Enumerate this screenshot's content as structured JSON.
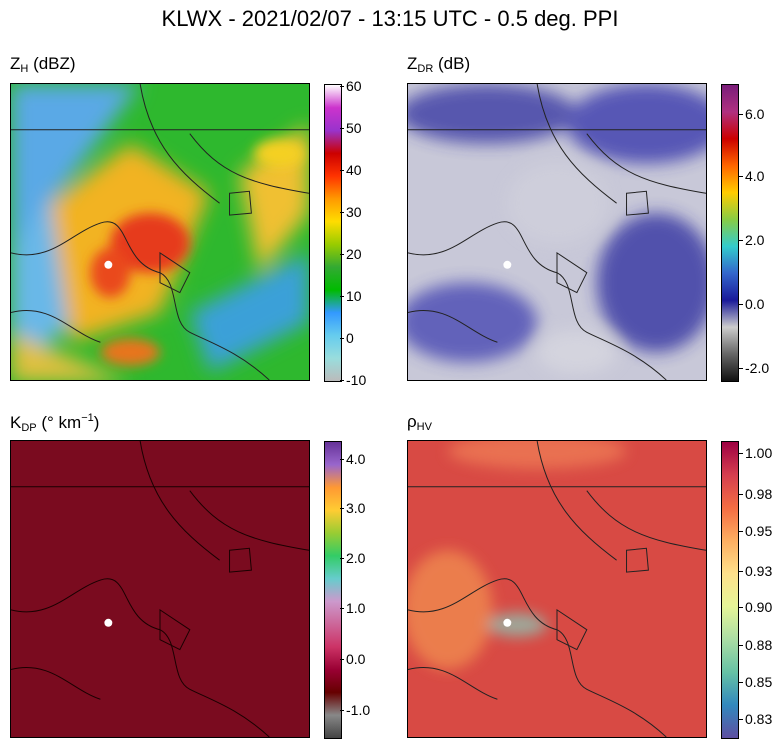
{
  "title": "KLWX - 2021/02/07 - 13:15 UTC - 0.5 deg. PPI",
  "panels": [
    {
      "id": "zh",
      "label_main": "Z",
      "label_sub": "H",
      "label_rest": " (dBZ)",
      "ticks": [
        "60",
        "50",
        "40",
        "30",
        "20",
        "10",
        "0",
        "-10"
      ],
      "colorbar": [
        "#ffffff",
        "#cc33cc",
        "#9933cc",
        "#cc0000",
        "#ff3300",
        "#ff9900",
        "#ffdd00",
        "#99cc00",
        "#33aa33",
        "#00bb00",
        "#3399ff",
        "#66ccee",
        "#99dddd",
        "#bbbbbb"
      ]
    },
    {
      "id": "zdr",
      "label_main": "Z",
      "label_sub": "DR",
      "label_rest": " (dB)",
      "ticks": [
        "6.0",
        "4.0",
        "2.0",
        "0.0",
        "-2.0"
      ],
      "colorbar": [
        "#7a1d7a",
        "#b03080",
        "#cc0000",
        "#ff6600",
        "#ffcc00",
        "#88cc44",
        "#33cccc",
        "#3366cc",
        "#1a1a99",
        "#cccccc",
        "#666666",
        "#111111"
      ]
    },
    {
      "id": "kdp",
      "label_main": "K",
      "label_sub": "DP",
      "label_rest": " (° km",
      "label_sup": "−1",
      "label_end": ")",
      "ticks": [
        "4.0",
        "3.0",
        "2.0",
        "1.0",
        "0.0",
        "-1.0"
      ],
      "colorbar": [
        "#663399",
        "#9966cc",
        "#ff9933",
        "#ffcc33",
        "#99cc33",
        "#33cc66",
        "#66cccc",
        "#cc99cc",
        "#cc6699",
        "#cc3366",
        "#990033",
        "#660000",
        "#888888",
        "#444444"
      ]
    },
    {
      "id": "rhohv",
      "label_main": "ρ",
      "label_sub": "HV",
      "label_rest": "",
      "ticks": [
        "1.00",
        "0.98",
        "0.95",
        "0.93",
        "0.90",
        "0.88",
        "0.85",
        "0.83"
      ],
      "colorbar": [
        "#9e0142",
        "#d53e4f",
        "#f46d43",
        "#fdae61",
        "#fee08b",
        "#e6f598",
        "#abdda4",
        "#66c2a5",
        "#3288bd",
        "#5e4fa2"
      ]
    }
  ]
}
